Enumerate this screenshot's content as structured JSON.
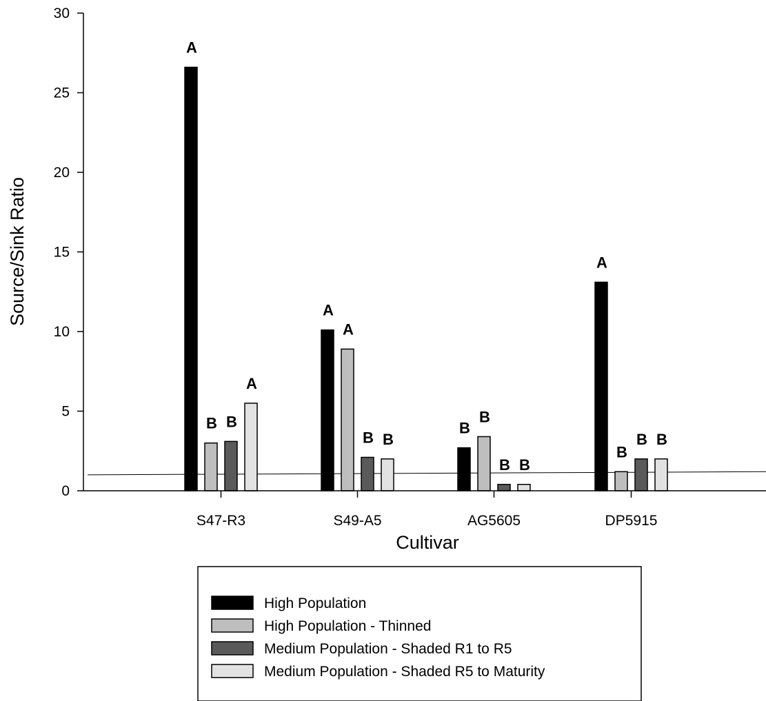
{
  "chart_data": {
    "type": "bar",
    "xlabel": "Cultivar",
    "ylabel": "Source/Sink Ratio",
    "ylim": [
      0,
      30
    ],
    "yticks": [
      0,
      5,
      10,
      15,
      20,
      25,
      30
    ],
    "categories": [
      "S47-R3",
      "S49-A5",
      "AG5605",
      "DP5915"
    ],
    "series": [
      {
        "name": "High Population",
        "color": "#000000",
        "values": [
          26.6,
          10.1,
          2.7,
          13.1
        ]
      },
      {
        "name": "High Population - Thinned",
        "color": "#bebebe",
        "values": [
          3.0,
          8.9,
          3.4,
          1.2
        ]
      },
      {
        "name": "Medium Population - Shaded R1 to R5",
        "color": "#5a5a5a",
        "values": [
          3.1,
          2.1,
          0.4,
          2.0
        ]
      },
      {
        "name": "Medium Population - Shaded R5 to Maturity",
        "color": "#e2e2e2",
        "values": [
          5.5,
          2.0,
          0.4,
          2.0
        ]
      }
    ],
    "significance_letters": [
      [
        "A",
        "B",
        "B",
        "A"
      ],
      [
        "A",
        "A",
        "B",
        "B"
      ],
      [
        "B",
        "B",
        "B",
        "B"
      ],
      [
        "A",
        "B",
        "B",
        "B"
      ]
    ],
    "reference_line": {
      "y_start": 1.0,
      "y_end": 1.2
    },
    "legend_position": "bottom-center",
    "grid": false
  }
}
